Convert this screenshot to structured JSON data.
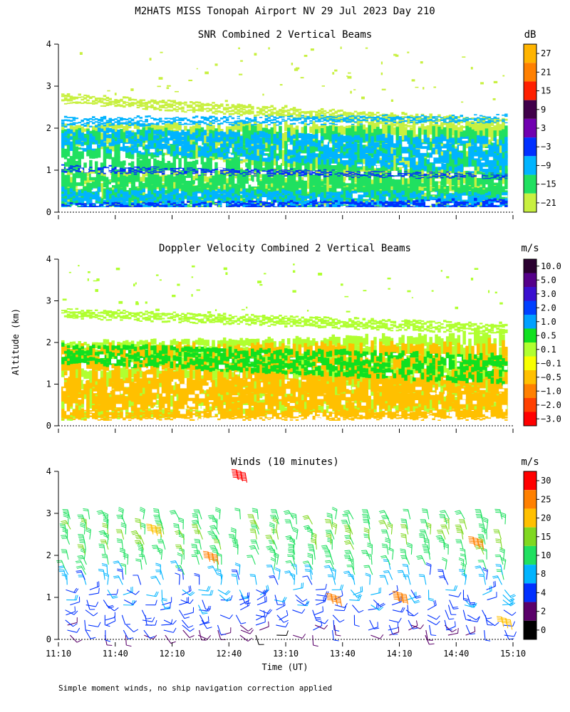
{
  "header": {
    "title": "M2HATS MISS Tonopah Airport NV  29 Jul 2023 Day 210"
  },
  "footer": {
    "note": "Simple moment winds, no ship navigation correction applied"
  },
  "chart_data": [
    {
      "type": "heatmap",
      "title": "SNR Combined 2 Vertical Beams",
      "units": "dB",
      "ylabel": "",
      "ylim": [
        0,
        4
      ],
      "yticks": [
        "0",
        "1",
        "2",
        "3",
        "4"
      ],
      "colorbar": {
        "labels": [
          "27",
          "21",
          "15",
          "9",
          "3",
          "−3",
          "−9",
          "−15",
          "−21"
        ],
        "colors": [
          "#ffb400",
          "#ff8000",
          "#ff2000",
          "#40004a",
          "#7000b0",
          "#0030ff",
          "#00b4ff",
          "#20e060",
          "#c8f040"
        ]
      },
      "layers": [
        {
          "level_db": -21,
          "bands": [
            [
              0.0,
              0.25,
              0.25,
              0.12
            ],
            [
              0.25,
              1.0,
              1.0,
              0.15
            ],
            [
              1.6,
              2.1,
              2.1,
              0.55
            ],
            [
              2.6,
              2.8,
              2.2,
              1.9
            ]
          ]
        },
        {
          "level_db": -15,
          "bands": [
            [
              0.0,
              0.18,
              0.18,
              0.12
            ],
            [
              0.3,
              1.95,
              2.0,
              0.3
            ],
            [
              0.15,
              0.9,
              0.6,
              0.3
            ]
          ]
        },
        {
          "level_db": -9,
          "bands": [
            [
              0.05,
              0.55,
              0.45,
              0.05
            ],
            [
              1.5,
              2.0,
              1.75,
              0.9
            ],
            [
              2.05,
              2.25,
              2.3,
              2.15
            ]
          ]
        },
        {
          "level_db": -3,
          "bands": [
            [
              0.0,
              0.2,
              0.3,
              0.0
            ],
            [
              0.95,
              1.1,
              0.9,
              0.8
            ]
          ]
        }
      ]
    },
    {
      "type": "heatmap",
      "title": "Doppler Velocity Combined 2 Vertical Beams",
      "units": "m/s",
      "ylabel": "Altitude (km)",
      "ylim": [
        0,
        4
      ],
      "yticks": [
        "0",
        "1",
        "2",
        "3",
        "4"
      ],
      "colorbar": {
        "labels": [
          "10.0",
          "5.0",
          "3.0",
          "2.0",
          "1.0",
          "0.5",
          "0.1",
          "−0.1",
          "−0.5",
          "−1.0",
          "−2.0",
          "−3.0"
        ],
        "colors": [
          "#2a0030",
          "#55008a",
          "#3a10d0",
          "#0040ff",
          "#00a0ff",
          "#10e020",
          "#b0ff30",
          "#f8ff00",
          "#ffc000",
          "#ff8000",
          "#ff4000",
          "#ff0000"
        ]
      },
      "layers": [
        {
          "level_ms": 0.1,
          "bands": [
            [
              0.15,
              1.4,
              1.2,
              0.4
            ],
            [
              1.6,
              2.0,
              2.2,
              0.8
            ],
            [
              2.6,
              2.8,
              2.45,
              2.2
            ]
          ]
        },
        {
          "level_ms": -0.5,
          "bands": [
            [
              0.2,
              1.1,
              1.2,
              0.2
            ],
            [
              0.5,
              1.9,
              2.0,
              0.5
            ],
            [
              0.15,
              0.35,
              0.35,
              0.15
            ]
          ]
        },
        {
          "level_ms": 0.5,
          "bands": [
            [
              1.5,
              1.95,
              1.7,
              1.0
            ]
          ]
        }
      ]
    },
    {
      "type": "wind_barbs",
      "title": "Winds (10 minutes)",
      "units": "m/s",
      "xlabel": "Time (UT)",
      "ylabel": "",
      "ylim": [
        0,
        4
      ],
      "yticks": [
        "0",
        "1",
        "2",
        "3",
        "4"
      ],
      "xlim": [
        "11:10",
        "15:10"
      ],
      "xticks": [
        "11:10",
        "11:40",
        "12:10",
        "12:40",
        "13:10",
        "13:40",
        "14:10",
        "14:40",
        "15:10"
      ],
      "colorbar": {
        "labels": [
          "30",
          "25",
          "20",
          "15",
          "10",
          "8",
          "4",
          "2",
          "0"
        ],
        "colors": [
          "#ff0000",
          "#ff8000",
          "#ffc000",
          "#80d820",
          "#20e060",
          "#00b4ff",
          "#0030ff",
          "#5a006a",
          "#000000"
        ]
      },
      "profiles_every_minutes": 10,
      "speed_profile_ms": [
        [
          0.1,
          3
        ],
        [
          0.4,
          5
        ],
        [
          0.8,
          7
        ],
        [
          1.1,
          8
        ],
        [
          1.5,
          9
        ],
        [
          2.0,
          14
        ],
        [
          2.5,
          15
        ],
        [
          2.9,
          13
        ]
      ],
      "highlights": [
        {
          "time": "12:45",
          "alt_km": 3.8,
          "speed_ms": 30
        },
        {
          "time": "12:00",
          "alt_km": 2.5,
          "speed_ms": 24
        },
        {
          "time": "12:30",
          "alt_km": 1.85,
          "speed_ms": 26
        },
        {
          "time": "14:50",
          "alt_km": 2.2,
          "speed_ms": 26
        },
        {
          "time": "14:10",
          "alt_km": 0.9,
          "speed_ms": 28
        },
        {
          "time": "13:35",
          "alt_km": 0.85,
          "speed_ms": 27
        },
        {
          "time": "15:05",
          "alt_km": 0.3,
          "speed_ms": 22
        }
      ]
    }
  ]
}
